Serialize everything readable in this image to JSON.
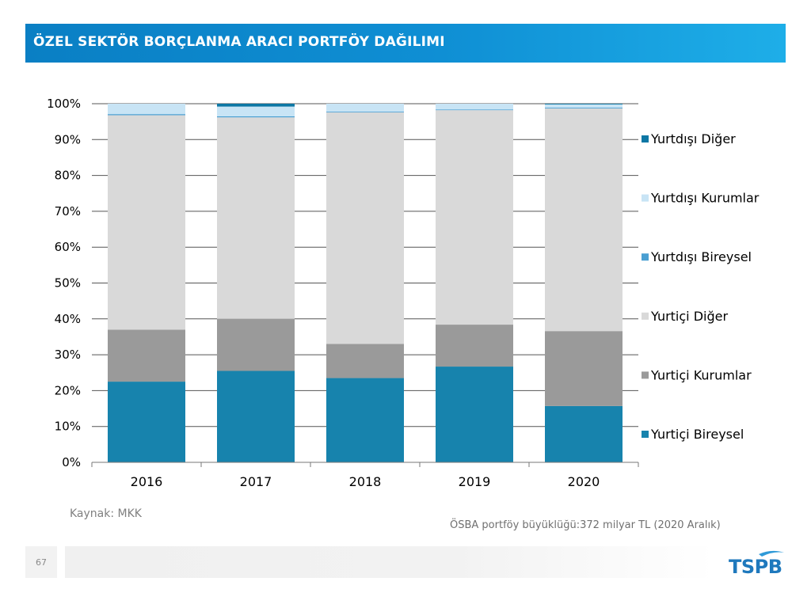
{
  "header": {
    "title": "ÖZEL SEKTÖR BORÇLANMA ARACI PORTFÖY DAĞILIMI"
  },
  "chart_data": {
    "type": "bar",
    "stacked": true,
    "categories": [
      "2016",
      "2017",
      "2018",
      "2019",
      "2020"
    ],
    "series": [
      {
        "name": "Yurtiçi Bireysel",
        "color": "#1783ad",
        "values": [
          22.5,
          25.5,
          23.5,
          26.7,
          15.7
        ]
      },
      {
        "name": "Yurtiçi Kurumlar",
        "color": "#9a9a9a",
        "values": [
          14.5,
          14.5,
          9.5,
          11.7,
          20.9
        ]
      },
      {
        "name": "Yurtiçi Diğer",
        "color": "#d9d9d9",
        "values": [
          59.8,
          56.2,
          64.6,
          59.8,
          62.1
        ]
      },
      {
        "name": "Yurtdışı Bireysel",
        "color": "#4a9fd2",
        "values": [
          0.3,
          0.3,
          0.2,
          0.2,
          0.2
        ]
      },
      {
        "name": "Yurtdışı Kurumlar",
        "color": "#c8e4f5",
        "values": [
          2.9,
          2.7,
          2.2,
          1.6,
          0.9
        ]
      },
      {
        "name": "Yurtdışı Diğer",
        "color": "#0d77a4",
        "values": [
          0.0,
          0.8,
          0.0,
          0.0,
          0.2
        ]
      }
    ],
    "ylim": [
      0,
      100
    ],
    "yticks": [
      "0%",
      "10%",
      "20%",
      "30%",
      "40%",
      "50%",
      "60%",
      "70%",
      "80%",
      "90%",
      "100%"
    ],
    "legend_order": [
      "Yurtdışı Diğer",
      "Yurtdışı Kurumlar",
      "Yurtdışı Bireysel",
      "Yurtiçi Diğer",
      "Yurtiçi Kurumlar",
      "Yurtiçi Bireysel"
    ],
    "legend_position": "right",
    "grid": true
  },
  "source": "Kaynak: MKK",
  "note": "ÖSBA portföy büyüklüğü:372 milyar TL (2020 Aralık)",
  "footer": {
    "page_number": "67",
    "logo_text": "TSPB"
  }
}
